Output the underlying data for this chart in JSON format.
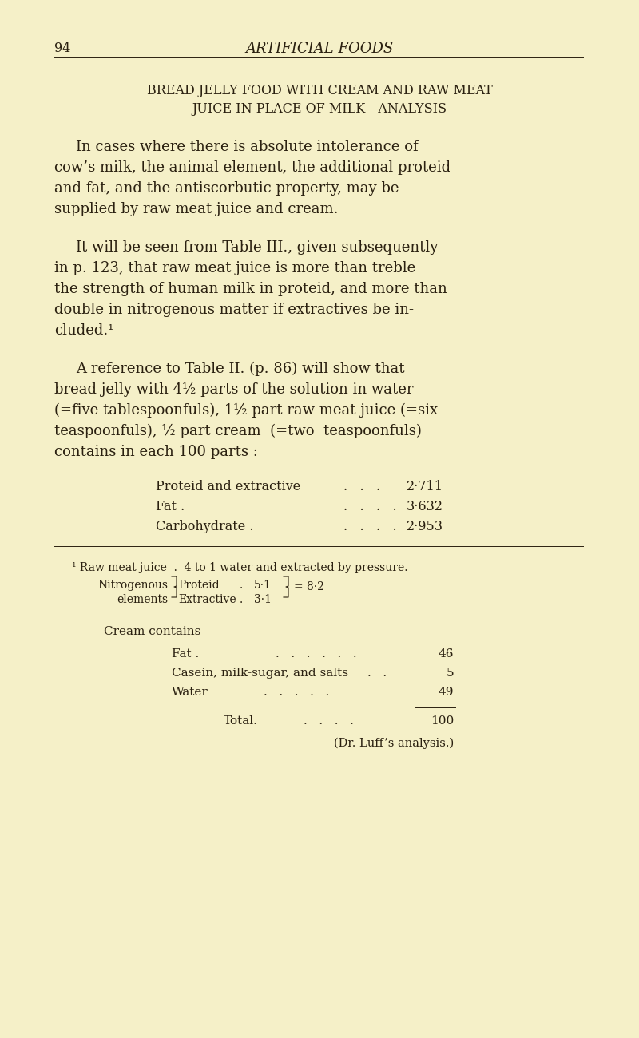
{
  "background_color": "#f5f0c8",
  "page_number": "94",
  "header_title": "ARTIFICIAL FOODS",
  "section_title_line1": "BREAD JELLY FOOD WITH CREAM AND RAW MEAT",
  "section_title_line2": "JUICE IN PLACE OF MILK—ANALYSIS",
  "p1": [
    "In cases where there is absolute intolerance of",
    "cow’s milk, the animal element, the additional proteid",
    "and fat, and the antiscorbutic property, may be",
    "supplied by raw meat juice and cream."
  ],
  "p2": [
    "It will be seen from Table III., given subsequently",
    "in p. 123, that raw meat juice is more than treble",
    "the strength of human milk in proteid, and more than",
    "double in nitrogenous matter if extractives be in-",
    "cluded.¹"
  ],
  "p3": [
    "A reference to Table II. (p. 86) will show that",
    "bread jelly with 4½ parts of the solution in water",
    "(=five tablespoonfuls), 1½ part raw meat juice (=six",
    "teaspoonfuls), ½ part cream  (=two  teaspoonfuls)",
    "contains in each 100 parts :"
  ],
  "table_labels": [
    "Proteid and extractive",
    "Fat .",
    "Carbohydrate ."
  ],
  "table_dots": [
    ".   .   .",
    ".   .   .   .   .   .",
    ".   .   .   .   ."
  ],
  "table_values": [
    "2·711",
    "3·632",
    "2·953"
  ],
  "fn_line1": "¹ Raw meat juice  .  4 to 1 water and extracted by pressure.",
  "fn_nitro1": "Nitrogenous",
  "fn_nitro2": "elements",
  "fn_proteid": "Proteid",
  "fn_extractive": "Extractive",
  "fn_dot": ".",
  "fn_pval": "5·1",
  "fn_eval": "3·1",
  "fn_total": "= 8·2",
  "cream_header": "Cream contains—",
  "cream_labels": [
    "Fat .",
    "Casein, milk-sugar, and salts",
    "Water"
  ],
  "cream_dots1": ".   .   .   .   .   .",
  "cream_dots2": ".   .",
  "cream_dots3": ".   .   .   .   .",
  "cream_vals": [
    "46",
    "5",
    "49"
  ],
  "total_label": "Total.",
  "total_dots": ".   .   .   .",
  "total_val": "100",
  "attribution": "(Dr. Luff’s analysis.)",
  "text_color": "#2a2010"
}
